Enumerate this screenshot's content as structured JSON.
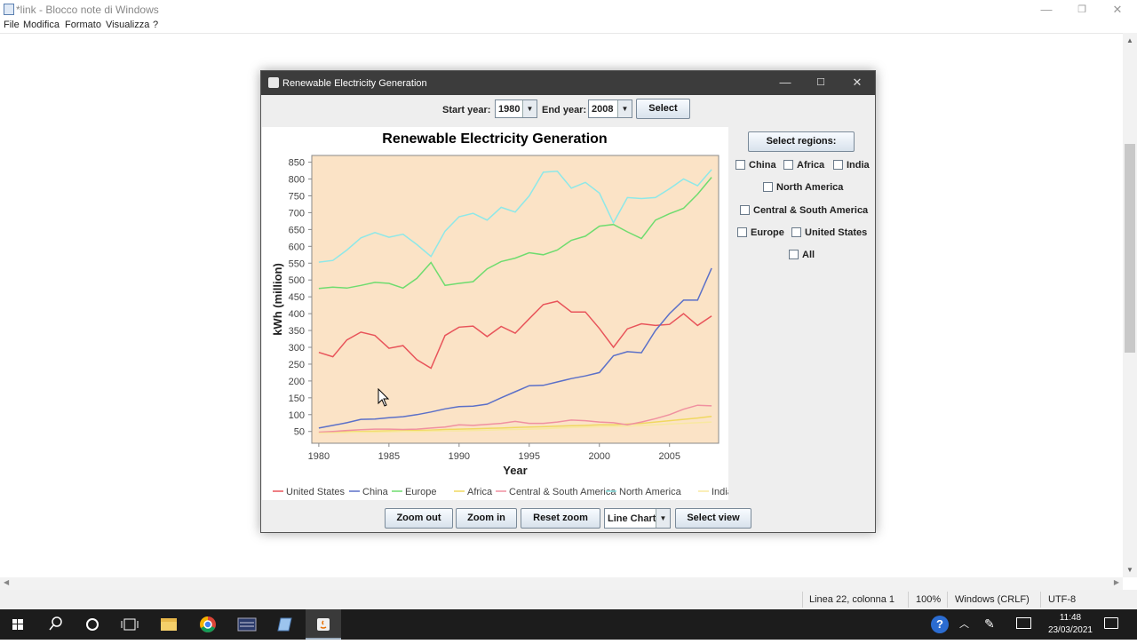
{
  "notepad": {
    "title": "*link - Blocco note di Windows",
    "menu": [
      "File",
      "Modifica",
      "Formato",
      "Visualizza",
      "?"
    ],
    "status": {
      "position": "Linea 22, colonna 1",
      "zoom": "100%",
      "line_ending": "Windows (CRLF)",
      "encoding": "UTF-8"
    }
  },
  "app": {
    "title": "Renewable Electricity Generation",
    "start_year_label": "Start year:",
    "start_year": "1980",
    "end_year_label": "End year:",
    "end_year": "2008",
    "select_button": "Select",
    "regions_button": "Select regions:",
    "regions": {
      "china": "China",
      "africa": "Africa",
      "india": "India",
      "north_america": "North America",
      "central_south_america": "Central & South America",
      "europe": "Europe",
      "united_states": "United States",
      "all": "All"
    },
    "bottom": {
      "zoom_out": "Zoom out",
      "zoom_in": "Zoom in",
      "reset_zoom": "Reset zoom",
      "chart_type": "Line Chart",
      "select_view": "Select view"
    }
  },
  "chart_data": {
    "type": "line",
    "title": "Renewable Electricity Generation",
    "xlabel": "Year",
    "ylabel": "kWh (million)",
    "x": [
      1980,
      1981,
      1982,
      1983,
      1984,
      1985,
      1986,
      1987,
      1988,
      1989,
      1990,
      1991,
      1992,
      1993,
      1994,
      1995,
      1996,
      1997,
      1998,
      1999,
      2000,
      2001,
      2002,
      2003,
      2004,
      2005,
      2006,
      2007,
      2008
    ],
    "xlim": [
      1979.5,
      2008.5
    ],
    "ylim": [
      15,
      870
    ],
    "xticks": [
      "1980",
      "1985",
      "1990",
      "1995",
      "2000",
      "2005"
    ],
    "yticks": [
      "50",
      "100",
      "150",
      "200",
      "250",
      "300",
      "350",
      "400",
      "450",
      "500",
      "550",
      "600",
      "650",
      "700",
      "750",
      "800",
      "850"
    ],
    "background": "#fbe3c6",
    "legend_position": "bottom",
    "series": [
      {
        "name": "United States",
        "color": "#e8545a",
        "values": [
          285,
          272,
          322,
          345,
          335,
          297,
          305,
          263,
          238,
          335,
          360,
          363,
          332,
          362,
          342,
          385,
          427,
          437,
          405,
          405,
          356,
          300,
          355,
          370,
          365,
          368,
          400,
          365,
          393
        ]
      },
      {
        "name": "China",
        "color": "#5b70c8",
        "values": [
          60,
          68,
          76,
          86,
          87,
          91,
          94,
          100,
          108,
          117,
          124,
          125,
          131,
          150,
          168,
          186,
          187,
          197,
          207,
          215,
          225,
          275,
          287,
          284,
          350,
          400,
          440,
          440,
          535
        ]
      },
      {
        "name": "Europe",
        "color": "#6fdc6f",
        "values": [
          475,
          479,
          476,
          484,
          493,
          490,
          476,
          505,
          552,
          484,
          490,
          495,
          533,
          555,
          565,
          581,
          575,
          589,
          618,
          630,
          660,
          665,
          643,
          623,
          678,
          697,
          713,
          755,
          805
        ]
      },
      {
        "name": "Africa",
        "color": "#f0d860",
        "values": [
          47,
          48,
          49,
          50,
          51,
          52,
          52,
          53,
          54,
          56,
          57,
          58,
          59,
          60,
          62,
          63,
          64,
          66,
          67,
          68,
          70,
          70,
          72,
          74,
          78,
          82,
          86,
          90,
          95
        ]
      },
      {
        "name": "Central & South America",
        "color": "#f090a0",
        "values": [
          48,
          50,
          53,
          55,
          57,
          57,
          56,
          57,
          60,
          63,
          70,
          68,
          71,
          74,
          80,
          74,
          74,
          78,
          84,
          82,
          78,
          76,
          70,
          78,
          88,
          100,
          116,
          128,
          126
        ]
      },
      {
        "name": "North America",
        "color": "#8ee8e8",
        "values": [
          553,
          558,
          589,
          625,
          641,
          627,
          636,
          605,
          570,
          645,
          688,
          698,
          678,
          716,
          702,
          750,
          820,
          823,
          773,
          790,
          758,
          670,
          745,
          742,
          745,
          771,
          800,
          780,
          828
        ]
      },
      {
        "name": "India",
        "color": "#f8e8a0",
        "values": [
          45,
          46,
          47,
          48,
          48,
          49,
          50,
          50,
          51,
          52,
          52,
          53,
          54,
          55,
          56,
          57,
          58,
          60,
          62,
          63,
          64,
          65,
          66,
          68,
          70,
          72,
          74,
          76,
          78
        ]
      }
    ]
  },
  "taskbar": {
    "time": "11:48",
    "date": "23/03/2021"
  },
  "icons": [
    "windows-start-icon",
    "search-icon",
    "cortana-icon",
    "task-view-icon",
    "file-explorer-icon",
    "chrome-icon",
    "terminal-icon",
    "notepad-icon",
    "java-icon",
    "help-icon",
    "tray-chevron-icon",
    "pen-icon",
    "keyboard-icon",
    "notification-icon"
  ]
}
